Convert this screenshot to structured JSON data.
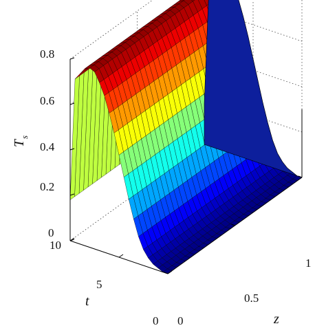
{
  "chart_data": {
    "type": "surface",
    "zlabel": "T",
    "zlabel_sub": "s",
    "xlabel": "z",
    "ylabel": "t",
    "z_axis": {
      "range": [
        0,
        0.8
      ],
      "ticks": [
        "0",
        "0.2",
        "0.4",
        "0.6",
        "0.8"
      ]
    },
    "x_axis": {
      "range": [
        0,
        1
      ],
      "ticks": [
        "0",
        "0.5",
        "1"
      ]
    },
    "y_axis": {
      "range": [
        0,
        10
      ],
      "ticks": [
        "0",
        "5",
        "10"
      ]
    },
    "grid": true,
    "colormap": "jet",
    "surface": {
      "description_of_values": "T_s rises with t (sigmoid) and is uniform along z",
      "t": [
        0,
        0.5,
        1,
        1.5,
        2,
        2.5,
        3,
        3.5,
        4,
        4.5,
        5,
        5.5,
        6,
        6.5,
        7,
        7.5,
        8,
        8.5,
        9,
        9.5,
        10
      ],
      "Ts_along_t": [
        0.0,
        0.0,
        0.01,
        0.02,
        0.04,
        0.07,
        0.12,
        0.19,
        0.27,
        0.36,
        0.45,
        0.54,
        0.62,
        0.69,
        0.74,
        0.78,
        0.79,
        0.78,
        0.75,
        0.72,
        0.18
      ]
    },
    "colors": {
      "frame": "#000000",
      "background": "#ffffff"
    }
  }
}
